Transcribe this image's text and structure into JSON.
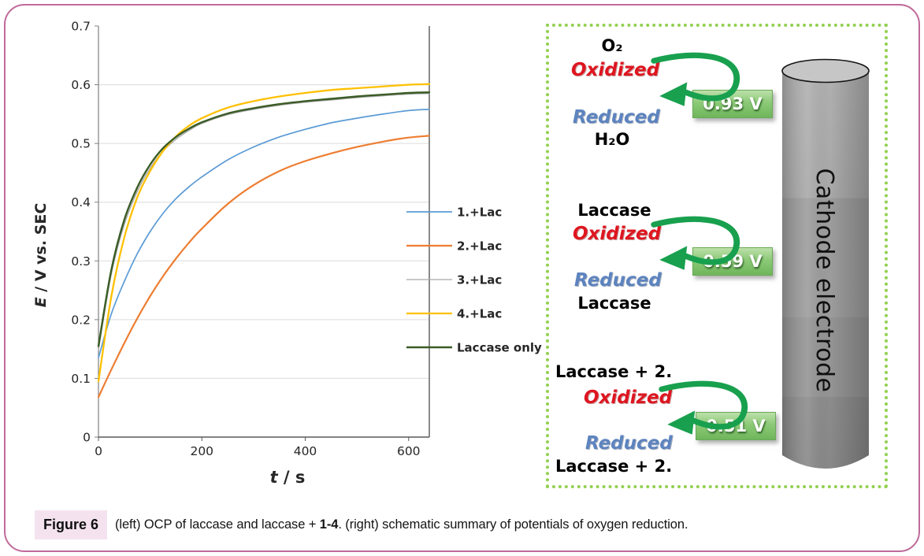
{
  "figure": {
    "caption_label": "Figure 6",
    "caption_part1": "(left) OCP of laccase and laccase + ",
    "caption_bold": "1-4",
    "caption_part2": ". (right) schematic summary of potentials of oxygen reduction."
  },
  "chart_data": {
    "type": "line",
    "title": "",
    "xlabel": "t / s",
    "ylabel": "E / V vs. SEC",
    "xlim": [
      0,
      640
    ],
    "ylim": [
      0,
      0.7
    ],
    "grid": "horizontal",
    "legend_position": "right",
    "xticks": [
      {
        "v": 0,
        "label": "0"
      },
      {
        "v": 200,
        "label": "200"
      },
      {
        "v": 400,
        "label": "400"
      },
      {
        "v": 600,
        "label": "600"
      }
    ],
    "yticks": [
      {
        "v": 0,
        "label": "0"
      },
      {
        "v": 0.1,
        "label": "0.1"
      },
      {
        "v": 0.2,
        "label": "0.2"
      },
      {
        "v": 0.3,
        "label": "0.3"
      },
      {
        "v": 0.4,
        "label": "0.4"
      },
      {
        "v": 0.5,
        "label": "0.5"
      },
      {
        "v": 0.6,
        "label": "0.6"
      },
      {
        "v": 0.7,
        "label": "0.7"
      }
    ],
    "x": [
      0,
      25,
      50,
      75,
      100,
      125,
      150,
      175,
      200,
      250,
      300,
      350,
      400,
      450,
      500,
      550,
      600,
      640
    ],
    "series": [
      {
        "name": "1.+Lac",
        "color": "#5b9bd5",
        "width": 1.7,
        "values": [
          0.135,
          0.21,
          0.265,
          0.312,
          0.35,
          0.381,
          0.406,
          0.426,
          0.443,
          0.472,
          0.494,
          0.511,
          0.524,
          0.535,
          0.543,
          0.55,
          0.556,
          0.558
        ]
      },
      {
        "name": "2.+Lac",
        "color": "#ed7d31",
        "width": 2.2,
        "values": [
          0.068,
          0.115,
          0.16,
          0.202,
          0.24,
          0.274,
          0.304,
          0.331,
          0.355,
          0.397,
          0.429,
          0.453,
          0.47,
          0.483,
          0.494,
          0.503,
          0.51,
          0.513
        ]
      },
      {
        "name": "3.+Lac",
        "color": "#a6a6a6",
        "width": 1.3,
        "values": [
          0.148,
          0.278,
          0.362,
          0.418,
          0.458,
          0.487,
          0.507,
          0.522,
          0.534,
          0.549,
          0.558,
          0.565,
          0.57,
          0.574,
          0.578,
          0.581,
          0.584,
          0.585
        ]
      },
      {
        "name": "4.+Lac",
        "color": "#ffc000",
        "width": 2.3,
        "values": [
          0.095,
          0.24,
          0.34,
          0.408,
          0.453,
          0.487,
          0.512,
          0.53,
          0.543,
          0.561,
          0.572,
          0.58,
          0.586,
          0.591,
          0.594,
          0.597,
          0.6,
          0.601
        ]
      },
      {
        "name": "Laccase only",
        "color": "#3a5c25",
        "width": 2.4,
        "values": [
          0.155,
          0.285,
          0.37,
          0.425,
          0.464,
          0.492,
          0.511,
          0.525,
          0.536,
          0.551,
          0.56,
          0.567,
          0.572,
          0.576,
          0.58,
          0.583,
          0.586,
          0.587
        ]
      }
    ],
    "legend": {
      "x_line": 488,
      "line_len": 58,
      "x_text": 552,
      "y_start": 251,
      "y_step": 43
    }
  },
  "schematic": {
    "electrode_label": "Cathode electrode",
    "oxidized_label": "Oxidized",
    "reduced_label": "Reduced",
    "arrow_color": "#18a04e",
    "border_color": "#92d050",
    "reactions": [
      {
        "species_top": "O₂",
        "species_bottom": "H₂O",
        "potential": "0.93 V"
      },
      {
        "species_top": "Laccase",
        "species_bottom": "Laccase",
        "potential": "0.59 V"
      },
      {
        "species_top": "Laccase + 2.",
        "species_bottom": "Laccase + 2.",
        "potential": "0.51 V"
      }
    ]
  }
}
